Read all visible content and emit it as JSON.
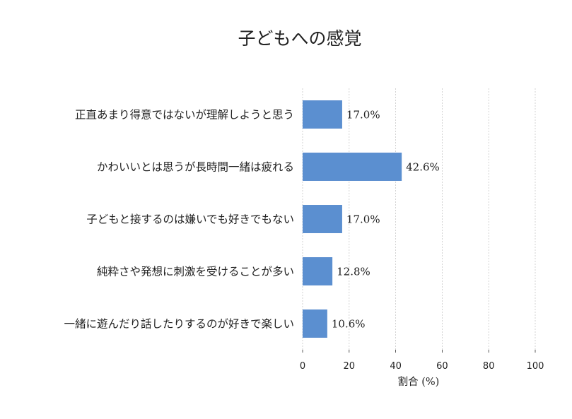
{
  "chart_data": {
    "type": "bar",
    "orientation": "horizontal",
    "title": "子どもへの感覚",
    "xlabel": "割合 (%)",
    "ylabel": "",
    "xlim": [
      0,
      100
    ],
    "xticks": [
      0,
      20,
      40,
      60,
      80,
      100
    ],
    "grid": true,
    "categories": [
      "正直あまり得意ではないが理解しようと思う",
      "かわいいとは思うが長時間一緒は疲れる",
      "子どもと接するのは嫌いでも好きでもない",
      "純粋さや発想に刺激を受けることが多い",
      "一緒に遊んだり話したりするのが好きで楽しい"
    ],
    "values": [
      17.0,
      42.6,
      17.0,
      12.8,
      10.6
    ],
    "value_labels": [
      "17.0%",
      "42.6%",
      "17.0%",
      "12.8%",
      "10.6%"
    ],
    "bar_color": "#5b8fd0"
  }
}
